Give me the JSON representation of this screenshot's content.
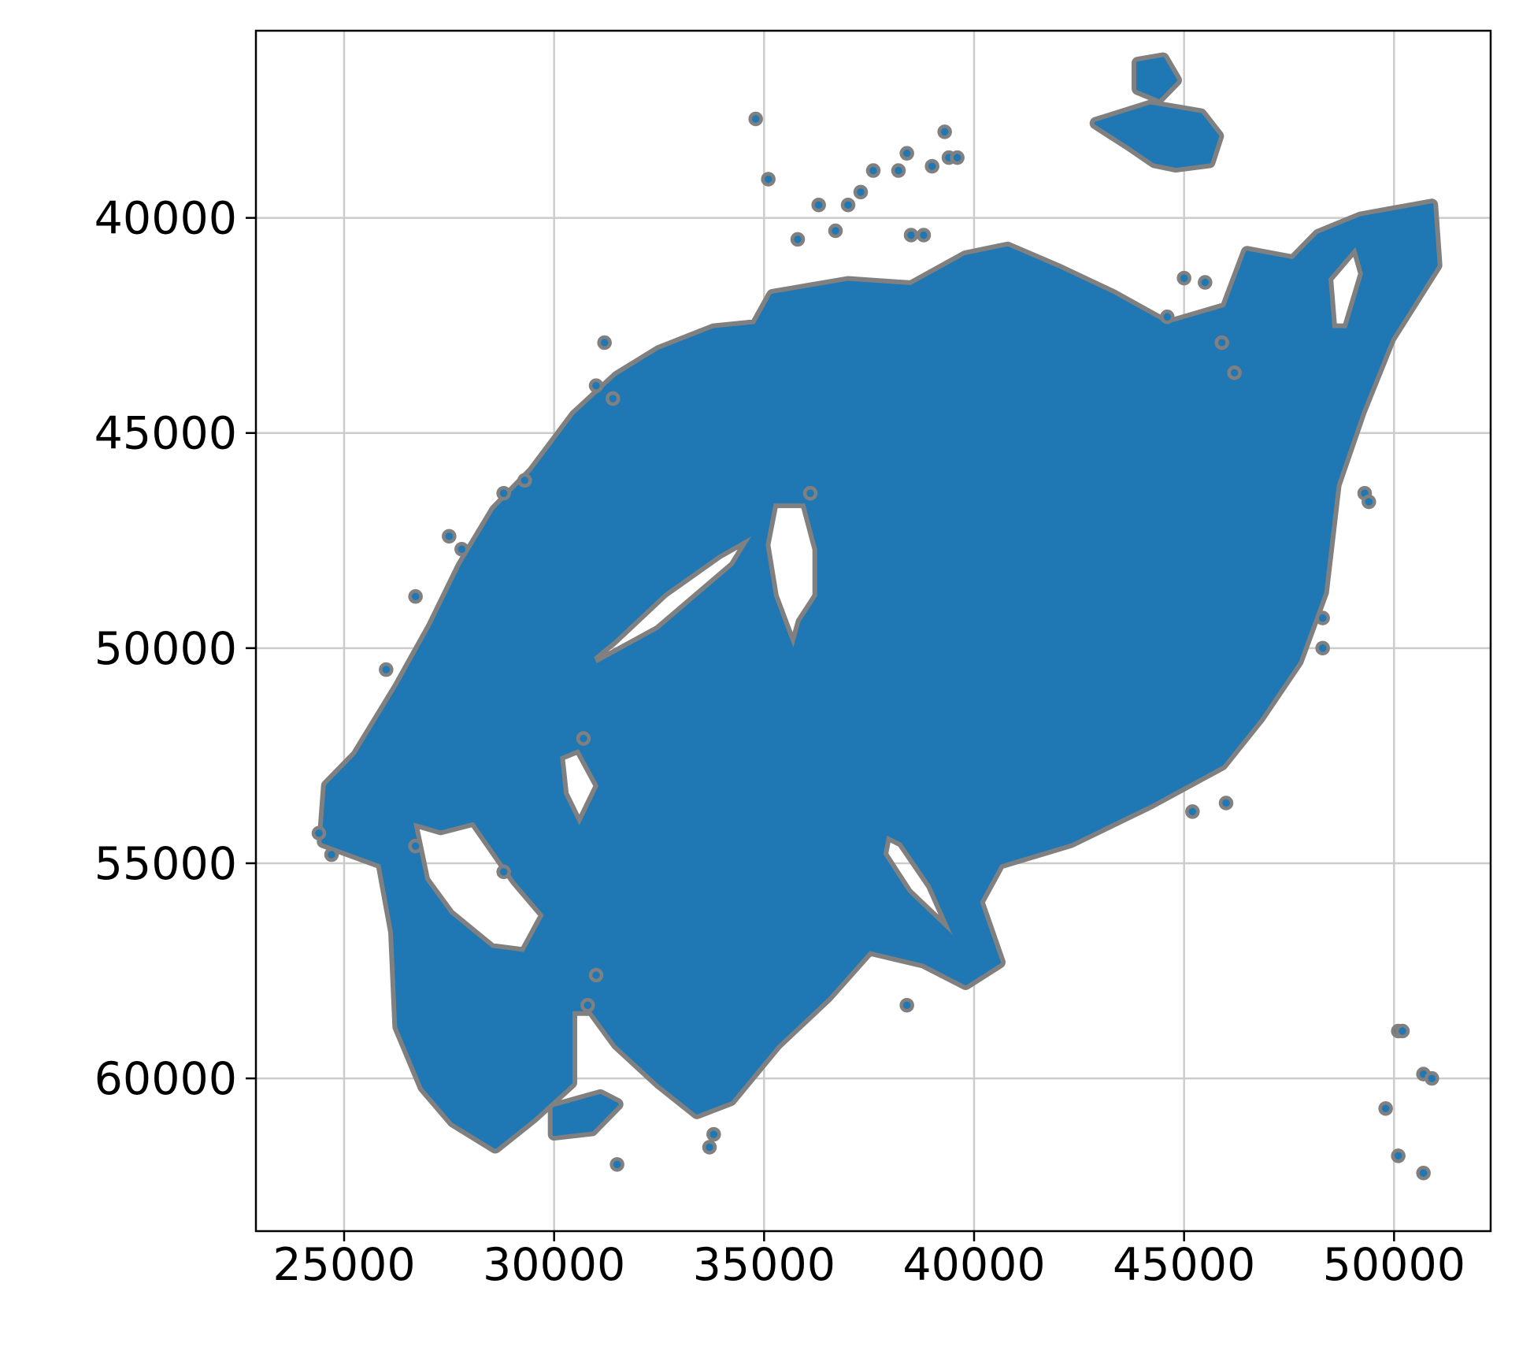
{
  "chart_data": {
    "type": "scatter",
    "title": "",
    "xlabel": "",
    "ylabel": "",
    "xlim": [
      22900,
      52300
    ],
    "ylim": [
      63550,
      35650
    ],
    "y_inverted": true,
    "grid": true,
    "x_ticks": [
      25000,
      30000,
      35000,
      40000,
      45000,
      50000
    ],
    "x_tick_labels": [
      "25000",
      "30000",
      "35000",
      "40000",
      "45000",
      "50000"
    ],
    "y_ticks": [
      40000,
      45000,
      50000,
      55000,
      60000
    ],
    "y_tick_labels": [
      "40000",
      "45000",
      "50000",
      "55000",
      "60000"
    ],
    "marker_face_color": "#1f77b4",
    "marker_edge_color": "#808080",
    "main_region_outline": [
      [
        24500,
        54500
      ],
      [
        24600,
        53200
      ],
      [
        25300,
        52500
      ],
      [
        26300,
        50900
      ],
      [
        27100,
        49500
      ],
      [
        27800,
        48100
      ],
      [
        28600,
        46800
      ],
      [
        29500,
        45900
      ],
      [
        30500,
        44600
      ],
      [
        31500,
        43700
      ],
      [
        32500,
        43100
      ],
      [
        33800,
        42600
      ],
      [
        34800,
        42500
      ],
      [
        35200,
        41800
      ],
      [
        37000,
        41500
      ],
      [
        38500,
        41600
      ],
      [
        39800,
        40900
      ],
      [
        40800,
        40700
      ],
      [
        42000,
        41200
      ],
      [
        43300,
        41800
      ],
      [
        44600,
        42500
      ],
      [
        46000,
        42100
      ],
      [
        46500,
        40800
      ],
      [
        47600,
        41000
      ],
      [
        48200,
        40400
      ],
      [
        49200,
        40000
      ],
      [
        50900,
        39700
      ],
      [
        51000,
        41100
      ],
      [
        49900,
        42800
      ],
      [
        49200,
        44500
      ],
      [
        48600,
        46200
      ],
      [
        48300,
        48700
      ],
      [
        47700,
        50300
      ],
      [
        46800,
        51600
      ],
      [
        45900,
        52700
      ],
      [
        44200,
        53600
      ],
      [
        42300,
        54500
      ],
      [
        40600,
        55000
      ],
      [
        40100,
        55900
      ],
      [
        40600,
        57300
      ],
      [
        39800,
        57800
      ],
      [
        38800,
        57300
      ],
      [
        37500,
        57000
      ],
      [
        36500,
        58100
      ],
      [
        35300,
        59200
      ],
      [
        34200,
        60500
      ],
      [
        33400,
        60800
      ],
      [
        32500,
        60100
      ],
      [
        31500,
        59200
      ],
      [
        30900,
        58400
      ],
      [
        30400,
        58400
      ],
      [
        30400,
        60100
      ],
      [
        29500,
        60900
      ],
      [
        28600,
        61600
      ],
      [
        27600,
        61000
      ],
      [
        26900,
        60200
      ],
      [
        26300,
        58800
      ],
      [
        26200,
        56600
      ],
      [
        25900,
        55000
      ],
      [
        24500,
        54500
      ]
    ],
    "holes": [
      [
        [
          31000,
          50400
        ],
        [
          32500,
          49600
        ],
        [
          34300,
          48100
        ],
        [
          34800,
          47300
        ],
        [
          33900,
          47800
        ],
        [
          32600,
          48700
        ],
        [
          31400,
          49800
        ],
        [
          30900,
          50200
        ]
      ],
      [
        [
          36300,
          48800
        ],
        [
          35900,
          49400
        ],
        [
          35700,
          50100
        ],
        [
          35200,
          48800
        ],
        [
          35000,
          47600
        ],
        [
          35200,
          46600
        ],
        [
          36000,
          46600
        ],
        [
          36300,
          47700
        ]
      ],
      [
        [
          38300,
          54500
        ],
        [
          39000,
          55500
        ],
        [
          39500,
          56600
        ],
        [
          39800,
          57000
        ],
        [
          38400,
          55700
        ],
        [
          37800,
          54800
        ],
        [
          37900,
          54300
        ]
      ],
      [
        [
          26600,
          54000
        ],
        [
          27300,
          54200
        ],
        [
          28100,
          54000
        ],
        [
          28600,
          54700
        ],
        [
          29100,
          55400
        ],
        [
          29800,
          56200
        ],
        [
          29300,
          57100
        ],
        [
          28500,
          57000
        ],
        [
          27500,
          56200
        ],
        [
          26900,
          55400
        ]
      ],
      [
        [
          48400,
          41400
        ],
        [
          49100,
          40600
        ],
        [
          49300,
          41300
        ],
        [
          48900,
          42600
        ],
        [
          48500,
          42600
        ]
      ],
      [
        [
          30100,
          52500
        ],
        [
          30600,
          52300
        ],
        [
          31100,
          53200
        ],
        [
          30600,
          54200
        ],
        [
          30200,
          53400
        ]
      ]
    ],
    "islands": [
      [
        [
          42900,
          37800
        ],
        [
          44200,
          37400
        ],
        [
          45400,
          37600
        ],
        [
          45800,
          38100
        ],
        [
          45600,
          38700
        ],
        [
          44800,
          38800
        ],
        [
          44300,
          38700
        ],
        [
          43700,
          38300
        ]
      ],
      [
        [
          43900,
          36400
        ],
        [
          44500,
          36300
        ],
        [
          44800,
          36800
        ],
        [
          44400,
          37200
        ],
        [
          43900,
          37000
        ]
      ],
      [
        [
          30000,
          60700
        ],
        [
          31100,
          60400
        ],
        [
          31500,
          60600
        ],
        [
          30900,
          61200
        ],
        [
          30000,
          61300
        ]
      ]
    ],
    "outlier_points": [
      [
        24400,
        54300
      ],
      [
        24700,
        54800
      ],
      [
        26700,
        54600
      ],
      [
        28800,
        55200
      ],
      [
        26000,
        50500
      ],
      [
        26700,
        48800
      ],
      [
        27800,
        47700
      ],
      [
        27500,
        47400
      ],
      [
        28800,
        46400
      ],
      [
        29300,
        46100
      ],
      [
        31200,
        42900
      ],
      [
        31000,
        43900
      ],
      [
        31400,
        44200
      ],
      [
        33800,
        61300
      ],
      [
        33700,
        61600
      ],
      [
        31500,
        62000
      ],
      [
        30800,
        58300
      ],
      [
        31000,
        57600
      ],
      [
        34800,
        37700
      ],
      [
        35100,
        39100
      ],
      [
        35800,
        40500
      ],
      [
        36300,
        39700
      ],
      [
        36700,
        40300
      ],
      [
        37000,
        39700
      ],
      [
        37300,
        39400
      ],
      [
        37600,
        38900
      ],
      [
        38200,
        38900
      ],
      [
        38400,
        38500
      ],
      [
        38500,
        40400
      ],
      [
        38800,
        40400
      ],
      [
        39000,
        38800
      ],
      [
        39300,
        38000
      ],
      [
        39400,
        38600
      ],
      [
        39600,
        38600
      ],
      [
        45000,
        41400
      ],
      [
        45500,
        41500
      ],
      [
        44600,
        42300
      ],
      [
        45900,
        42900
      ],
      [
        46200,
        43600
      ],
      [
        49300,
        46400
      ],
      [
        49400,
        46600
      ],
      [
        48300,
        49300
      ],
      [
        48300,
        50000
      ],
      [
        45200,
        53800
      ],
      [
        46000,
        53600
      ],
      [
        50100,
        58900
      ],
      [
        50200,
        58900
      ],
      [
        49800,
        60700
      ],
      [
        50700,
        59900
      ],
      [
        50900,
        60000
      ],
      [
        50100,
        61800
      ],
      [
        50700,
        62200
      ],
      [
        36100,
        46400
      ],
      [
        30700,
        52100
      ],
      [
        38400,
        58300
      ]
    ]
  }
}
